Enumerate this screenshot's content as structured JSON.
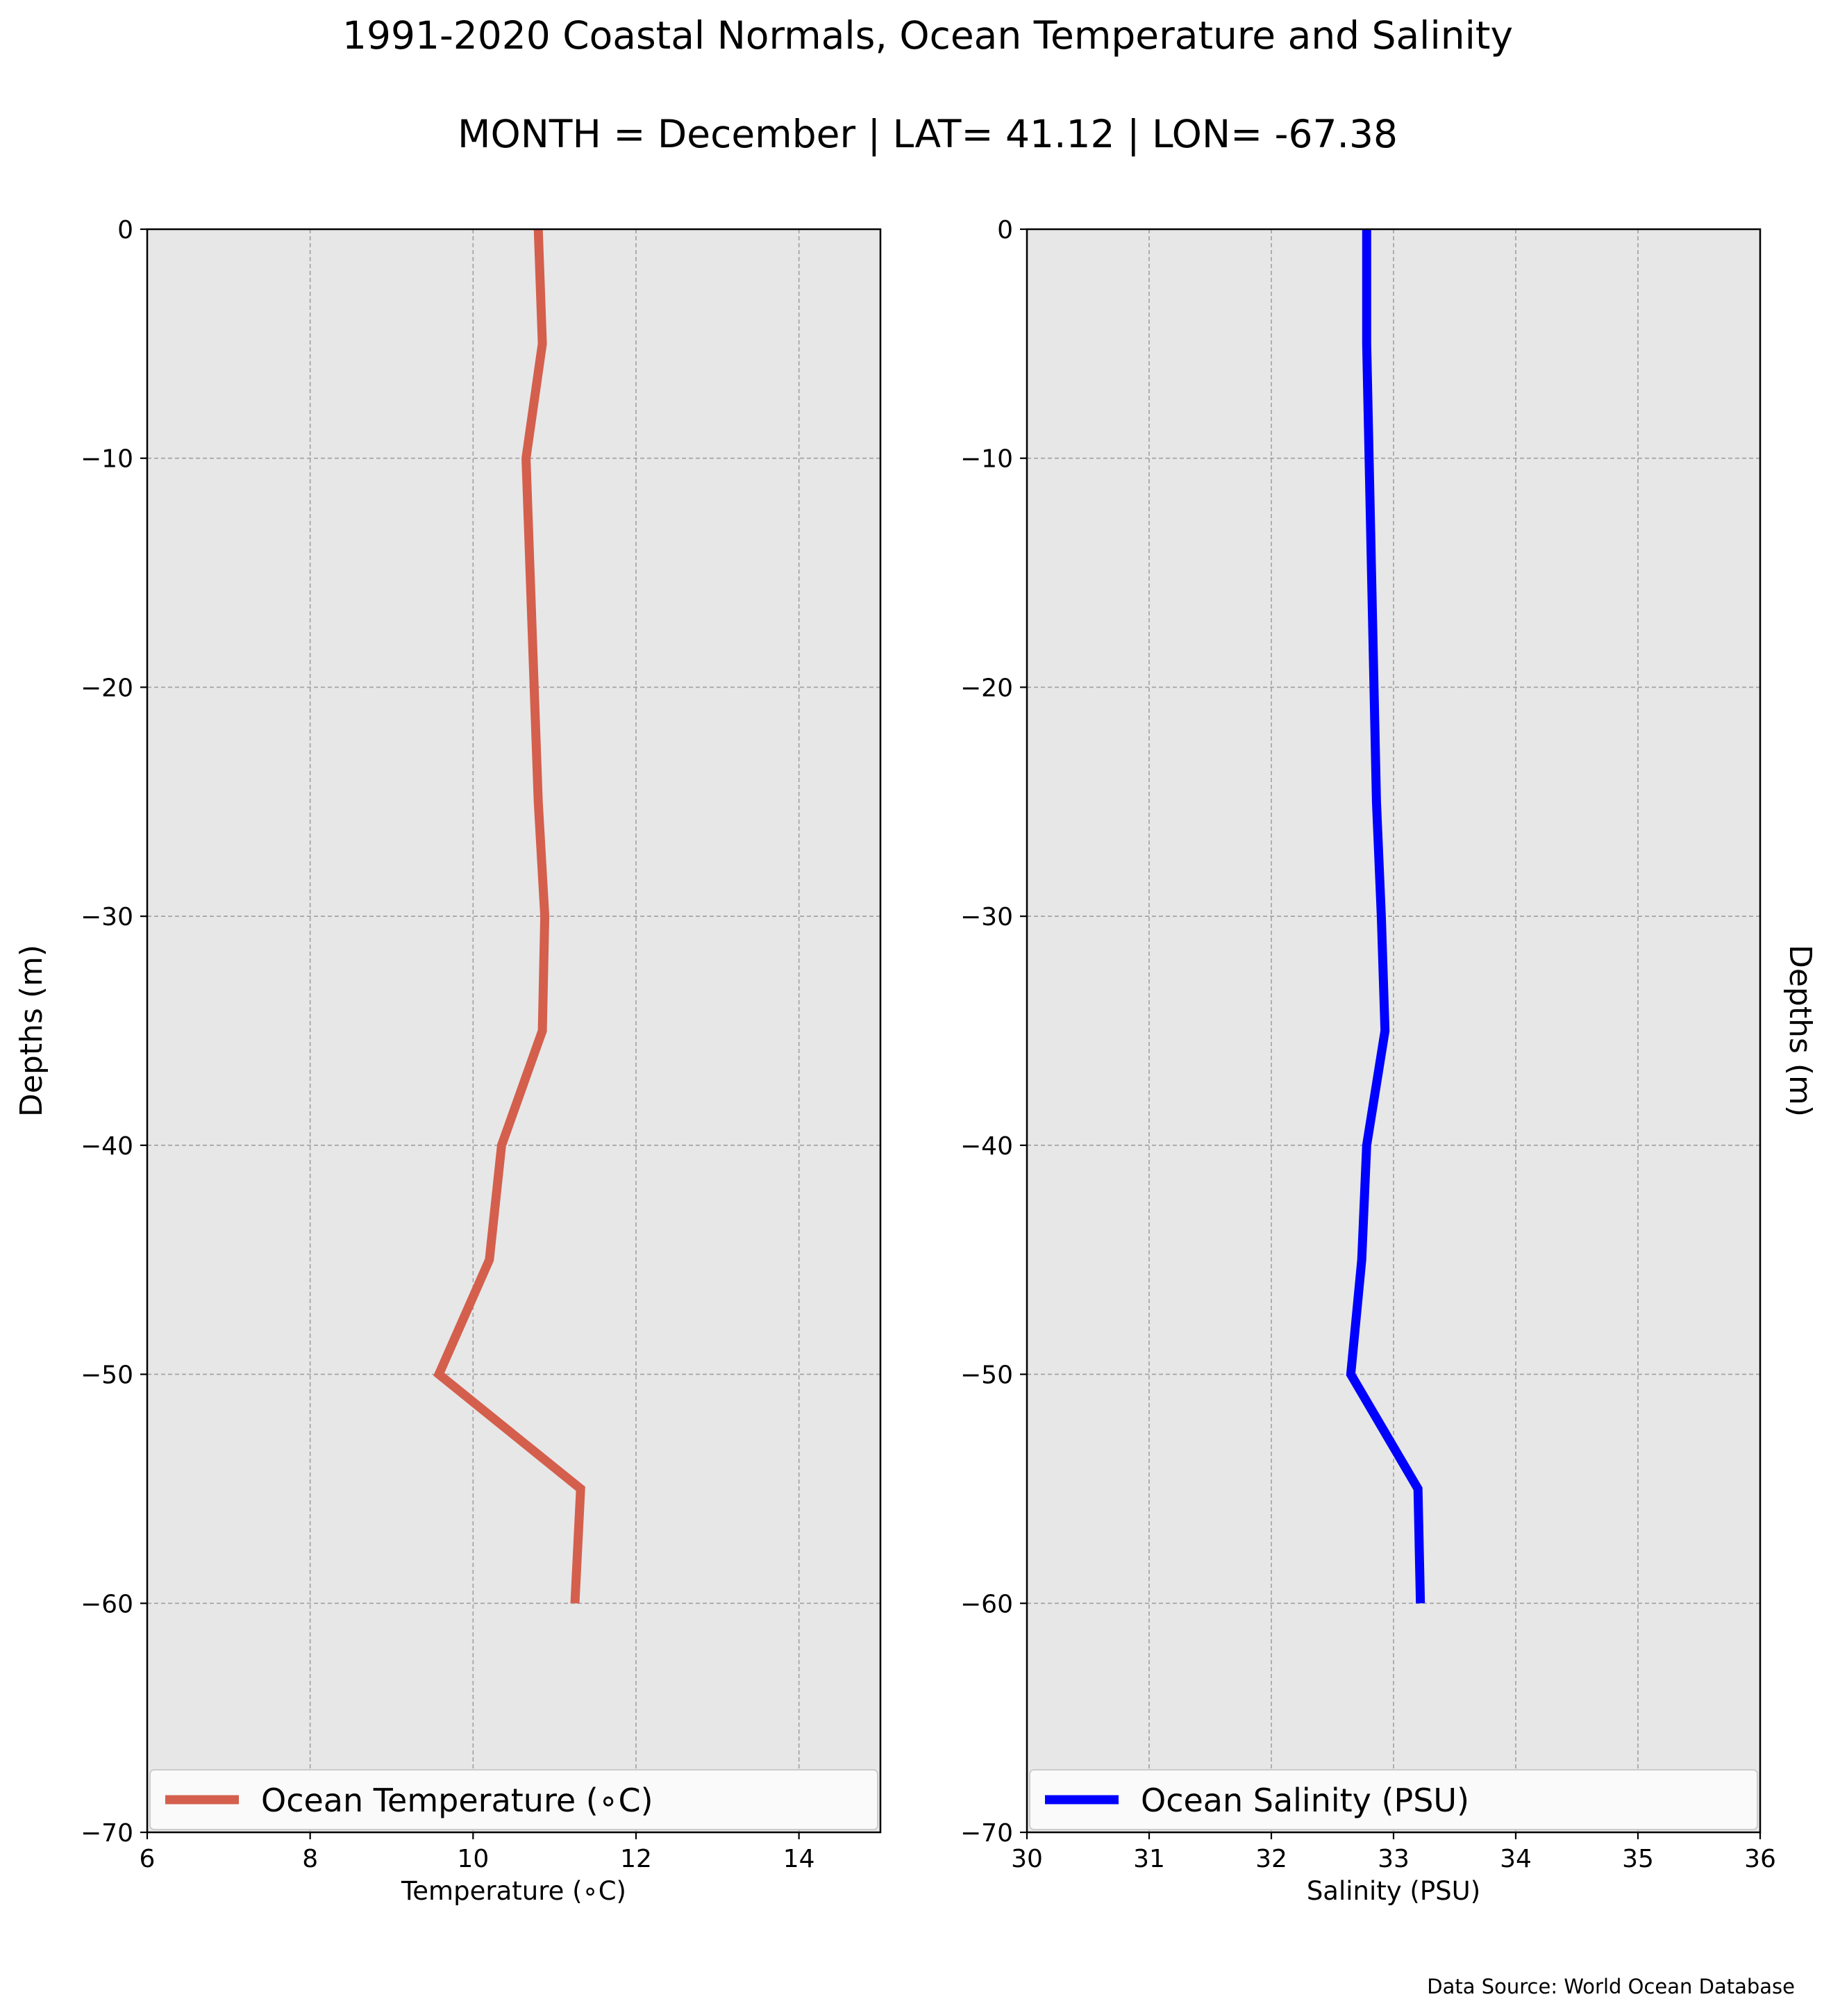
{
  "title": "1991-2020 Coastal Normals, Ocean Temperature and Salinity",
  "subtitle": "MONTH = December | LAT= 41.12 | LON= -67.38",
  "source_note": "Data Source: World Ocean Database",
  "chart_data": [
    {
      "type": "line",
      "xlabel": "Temperature (∘C)",
      "ylabel": "Depths (m)",
      "xlim": [
        6,
        15
      ],
      "ylim": [
        -70,
        0
      ],
      "xticks": [
        6,
        8,
        10,
        12,
        14
      ],
      "yticks": [
        0,
        -10,
        -20,
        -30,
        -40,
        -50,
        -60,
        -70
      ],
      "grid": true,
      "legend_position": "lower-center",
      "series": [
        {
          "name": "Ocean Temperature (∘C)",
          "color": "#d45f4d",
          "x": [
            10.8,
            10.85,
            10.65,
            10.75,
            10.8,
            10.88,
            10.85,
            10.35,
            10.2,
            9.58,
            11.32,
            11.25
          ],
          "y": [
            0,
            -5,
            -10,
            -20,
            -25,
            -30,
            -35,
            -40,
            -45,
            -50,
            -55,
            -60
          ]
        }
      ]
    },
    {
      "type": "line",
      "xlabel": "Salinity (PSU)",
      "ylabel": "Depths (m)",
      "xlim": [
        30,
        36
      ],
      "ylim": [
        -70,
        0
      ],
      "xticks": [
        30,
        31,
        32,
        33,
        34,
        35,
        36
      ],
      "yticks": [
        0,
        -10,
        -20,
        -30,
        -40,
        -50,
        -60,
        -70
      ],
      "grid": true,
      "legend_position": "lower-center",
      "series": [
        {
          "name": "Ocean Salinity (PSU)",
          "color": "#0000ff",
          "x": [
            32.78,
            32.78,
            32.8,
            32.82,
            32.86,
            32.9,
            32.93,
            32.78,
            32.74,
            32.65,
            33.2,
            33.22
          ],
          "y": [
            0,
            -5,
            -10,
            -15,
            -25,
            -30,
            -35,
            -40,
            -45,
            -50,
            -55,
            -60
          ]
        }
      ]
    }
  ]
}
